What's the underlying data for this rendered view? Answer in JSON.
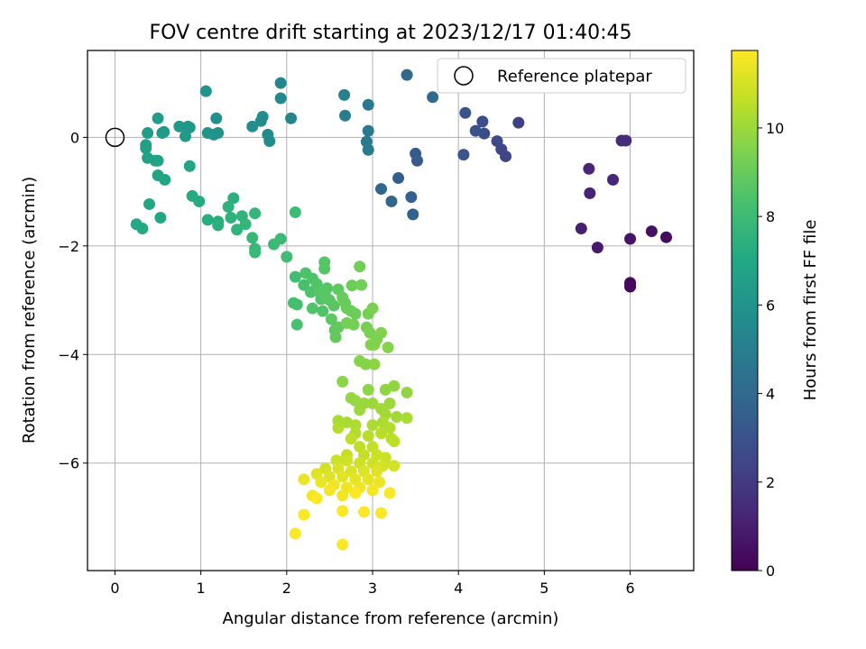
{
  "chart_data": {
    "type": "scatter",
    "title": "FOV centre drift starting at 2023/12/17 01:40:45",
    "xlabel": "Angular distance from reference (arcmin)",
    "ylabel": "Rotation from reference (arcmin)",
    "xlim": [
      -0.32,
      6.74
    ],
    "ylim": [
      -7.98,
      1.6
    ],
    "xticks": [
      0,
      1,
      2,
      3,
      4,
      5,
      6
    ],
    "yticks": [
      0,
      -2,
      -4,
      -6
    ],
    "grid": true,
    "legend": {
      "label": "Reference platepar",
      "placement": "top-right"
    },
    "reference": {
      "x": 0,
      "y": 0
    },
    "colorbar": {
      "label": "Hours from first FF file",
      "min": 0,
      "max": 11.75,
      "ticks": [
        0,
        2,
        4,
        6,
        8,
        10
      ],
      "colormap": "viridis"
    },
    "series": [
      {
        "points": [
          [
            6.0,
            -2.7,
            0.2
          ],
          [
            6.0,
            -2.75,
            0.2
          ],
          [
            6.0,
            -2.68,
            0.3
          ],
          [
            6.42,
            -1.84,
            0.4
          ],
          [
            6.25,
            -1.73,
            0.5
          ],
          [
            6.0,
            -1.87,
            0.6
          ],
          [
            5.62,
            -2.03,
            0.8
          ],
          [
            5.43,
            -1.68,
            1.0
          ],
          [
            5.53,
            -1.03,
            1.1
          ],
          [
            5.52,
            -0.58,
            1.2
          ],
          [
            5.8,
            -0.78,
            1.3
          ],
          [
            5.9,
            -0.06,
            1.4
          ],
          [
            5.95,
            -0.06,
            1.5
          ],
          [
            4.7,
            0.27,
            2.2
          ],
          [
            4.55,
            -0.35,
            2.4
          ],
          [
            4.5,
            -0.22,
            2.5
          ],
          [
            4.45,
            -0.07,
            2.6
          ],
          [
            4.3,
            0.07,
            2.7
          ],
          [
            4.28,
            0.29,
            2.8
          ],
          [
            4.2,
            0.12,
            2.9
          ],
          [
            4.08,
            0.45,
            3.0
          ],
          [
            4.06,
            -0.32,
            3.1
          ],
          [
            3.5,
            -0.3,
            3.3
          ],
          [
            3.52,
            -0.43,
            3.4
          ],
          [
            3.3,
            -0.75,
            3.5
          ],
          [
            3.45,
            -1.1,
            3.6
          ],
          [
            3.47,
            -1.42,
            3.7
          ],
          [
            3.22,
            -1.18,
            3.8
          ],
          [
            3.1,
            -0.95,
            3.9
          ],
          [
            3.4,
            1.15,
            4.0
          ],
          [
            3.7,
            0.74,
            4.1
          ],
          [
            2.95,
            0.6,
            4.7
          ],
          [
            2.95,
            0.12,
            4.8
          ],
          [
            2.93,
            -0.08,
            4.8
          ],
          [
            2.95,
            -0.23,
            4.9
          ],
          [
            2.68,
            0.4,
            5.0
          ],
          [
            2.67,
            0.78,
            5.1
          ],
          [
            2.05,
            0.35,
            5.3
          ],
          [
            1.93,
            1.0,
            5.4
          ],
          [
            1.93,
            0.72,
            5.5
          ],
          [
            1.78,
            0.05,
            5.6
          ],
          [
            1.8,
            -0.07,
            5.6
          ],
          [
            1.7,
            0.3,
            5.7
          ],
          [
            1.72,
            0.38,
            5.7
          ],
          [
            1.6,
            0.2,
            5.8
          ],
          [
            1.18,
            0.35,
            5.9
          ],
          [
            1.15,
            0.05,
            6.0
          ],
          [
            1.2,
            0.08,
            6.0
          ],
          [
            1.08,
            0.08,
            6.1
          ],
          [
            1.06,
            0.85,
            6.1
          ],
          [
            0.87,
            0.18,
            6.2
          ],
          [
            0.85,
            0.2,
            6.2
          ],
          [
            0.82,
            0.02,
            6.3
          ],
          [
            0.75,
            0.2,
            6.3
          ],
          [
            0.57,
            0.1,
            6.4
          ],
          [
            0.55,
            0.08,
            6.4
          ],
          [
            0.5,
            0.35,
            6.5
          ],
          [
            0.38,
            0.08,
            6.5
          ],
          [
            0.36,
            -0.14,
            6.6
          ],
          [
            0.36,
            -0.2,
            6.6
          ],
          [
            0.38,
            -0.38,
            6.7
          ],
          [
            0.47,
            -0.43,
            6.7
          ],
          [
            0.5,
            -0.43,
            6.8
          ],
          [
            0.5,
            -0.7,
            6.8
          ],
          [
            0.58,
            -0.78,
            6.9
          ],
          [
            0.87,
            -0.53,
            6.9
          ],
          [
            0.4,
            -1.23,
            7.0
          ],
          [
            0.53,
            -1.48,
            7.0
          ],
          [
            0.25,
            -1.6,
            7.1
          ],
          [
            0.32,
            -1.68,
            7.1
          ],
          [
            0.9,
            -1.08,
            7.2
          ],
          [
            0.98,
            -1.18,
            7.2
          ],
          [
            1.08,
            -1.52,
            7.3
          ],
          [
            1.2,
            -1.55,
            7.3
          ],
          [
            1.2,
            -1.62,
            7.4
          ],
          [
            1.38,
            -1.12,
            7.4
          ],
          [
            1.32,
            -1.28,
            7.5
          ],
          [
            1.35,
            -1.48,
            7.5
          ],
          [
            1.48,
            -1.45,
            7.6
          ],
          [
            1.42,
            -1.7,
            7.6
          ],
          [
            1.52,
            -1.6,
            7.7
          ],
          [
            1.63,
            -1.4,
            7.7
          ],
          [
            1.6,
            -1.85,
            7.8
          ],
          [
            1.63,
            -2.05,
            7.8
          ],
          [
            1.63,
            -2.12,
            7.9
          ],
          [
            1.85,
            -1.97,
            7.9
          ],
          [
            1.93,
            -1.87,
            8.0
          ],
          [
            2.1,
            -1.38,
            8.0
          ],
          [
            2.0,
            -2.2,
            8.1
          ],
          [
            2.1,
            -2.57,
            8.1
          ],
          [
            2.08,
            -3.05,
            8.2
          ],
          [
            2.12,
            -3.08,
            8.2
          ],
          [
            2.12,
            -3.45,
            8.3
          ],
          [
            2.2,
            -2.72,
            8.3
          ],
          [
            2.22,
            -2.5,
            8.4
          ],
          [
            2.3,
            -2.6,
            8.4
          ],
          [
            2.28,
            -2.85,
            8.4
          ],
          [
            2.3,
            -3.15,
            8.5
          ],
          [
            2.35,
            -2.7,
            8.5
          ],
          [
            2.4,
            -2.98,
            8.5
          ],
          [
            2.42,
            -3.2,
            8.5
          ],
          [
            2.44,
            -2.3,
            8.6
          ],
          [
            2.44,
            -2.42,
            8.6
          ],
          [
            2.38,
            -2.85,
            8.6
          ],
          [
            2.47,
            -2.78,
            8.6
          ],
          [
            2.45,
            -2.92,
            8.7
          ],
          [
            2.5,
            -3.0,
            8.7
          ],
          [
            2.55,
            -3.1,
            8.7
          ],
          [
            2.6,
            -2.8,
            8.8
          ],
          [
            2.52,
            -3.35,
            8.8
          ],
          [
            2.56,
            -3.55,
            8.8
          ],
          [
            2.6,
            -3.5,
            8.9
          ],
          [
            2.57,
            -3.68,
            8.9
          ],
          [
            2.65,
            -2.95,
            9.0
          ],
          [
            2.68,
            -3.05,
            9.0
          ],
          [
            2.7,
            -3.15,
            9.0
          ],
          [
            2.76,
            -2.73,
            9.1
          ],
          [
            2.75,
            -3.2,
            9.1
          ],
          [
            2.8,
            -3.25,
            9.1
          ],
          [
            2.78,
            -3.45,
            9.2
          ],
          [
            2.85,
            -2.38,
            9.2
          ],
          [
            2.87,
            -2.72,
            9.2
          ],
          [
            2.7,
            -3.42,
            9.3
          ],
          [
            2.95,
            -3.25,
            9.3
          ],
          [
            2.93,
            -3.5,
            9.3
          ],
          [
            3.0,
            -3.15,
            9.4
          ],
          [
            2.97,
            -3.6,
            9.4
          ],
          [
            3.05,
            -3.72,
            9.4
          ],
          [
            2.98,
            -3.82,
            9.5
          ],
          [
            3.02,
            -3.82,
            9.5
          ],
          [
            3.1,
            -3.6,
            9.5
          ],
          [
            3.18,
            -3.87,
            9.6
          ],
          [
            2.85,
            -4.12,
            9.6
          ],
          [
            2.92,
            -4.18,
            9.6
          ],
          [
            3.02,
            -4.18,
            9.7
          ],
          [
            2.65,
            -4.5,
            9.7
          ],
          [
            2.95,
            -4.65,
            9.7
          ],
          [
            3.15,
            -4.65,
            9.8
          ],
          [
            3.25,
            -4.58,
            9.8
          ],
          [
            3.4,
            -4.7,
            9.8
          ],
          [
            2.75,
            -4.8,
            9.9
          ],
          [
            2.8,
            -4.85,
            9.9
          ],
          [
            2.9,
            -4.9,
            9.9
          ],
          [
            3.0,
            -4.9,
            10.0
          ],
          [
            3.2,
            -4.9,
            10.0
          ],
          [
            2.85,
            -5.02,
            10.0
          ],
          [
            3.1,
            -5.0,
            10.1
          ],
          [
            3.15,
            -5.1,
            10.1
          ],
          [
            3.28,
            -5.15,
            10.1
          ],
          [
            3.4,
            -5.17,
            10.2
          ],
          [
            2.6,
            -5.22,
            10.2
          ],
          [
            2.7,
            -5.25,
            10.2
          ],
          [
            2.8,
            -5.3,
            10.3
          ],
          [
            3.0,
            -5.3,
            10.3
          ],
          [
            3.12,
            -5.25,
            10.3
          ],
          [
            3.2,
            -5.35,
            10.4
          ],
          [
            2.6,
            -5.35,
            10.4
          ],
          [
            2.8,
            -5.45,
            10.4
          ],
          [
            2.95,
            -5.5,
            10.5
          ],
          [
            3.1,
            -5.45,
            10.5
          ],
          [
            3.22,
            -5.55,
            10.5
          ],
          [
            3.25,
            -5.6,
            10.6
          ],
          [
            2.75,
            -5.55,
            10.6
          ],
          [
            2.85,
            -5.7,
            10.6
          ],
          [
            3.0,
            -5.7,
            10.7
          ],
          [
            2.7,
            -5.85,
            10.7
          ],
          [
            2.9,
            -5.85,
            10.7
          ],
          [
            3.05,
            -5.85,
            10.8
          ],
          [
            3.15,
            -5.9,
            10.8
          ],
          [
            2.58,
            -5.95,
            10.8
          ],
          [
            2.7,
            -5.95,
            10.9
          ],
          [
            2.85,
            -6.0,
            10.9
          ],
          [
            3.0,
            -6.0,
            10.9
          ],
          [
            3.12,
            -6.05,
            11.0
          ],
          [
            3.25,
            -6.05,
            11.0
          ],
          [
            2.45,
            -6.1,
            11.0
          ],
          [
            2.6,
            -6.1,
            11.1
          ],
          [
            2.75,
            -6.15,
            11.1
          ],
          [
            2.9,
            -6.15,
            11.1
          ],
          [
            3.05,
            -6.15,
            11.2
          ],
          [
            2.35,
            -6.2,
            11.2
          ],
          [
            2.5,
            -6.25,
            11.2
          ],
          [
            2.65,
            -6.25,
            11.3
          ],
          [
            2.8,
            -6.3,
            11.3
          ],
          [
            2.95,
            -6.3,
            11.3
          ],
          [
            3.08,
            -6.35,
            11.4
          ],
          [
            2.2,
            -6.3,
            11.4
          ],
          [
            2.4,
            -6.35,
            11.4
          ],
          [
            2.55,
            -6.4,
            11.5
          ],
          [
            2.7,
            -6.45,
            11.5
          ],
          [
            2.85,
            -6.45,
            11.5
          ],
          [
            3.0,
            -6.5,
            11.6
          ],
          [
            2.3,
            -6.6,
            11.6
          ],
          [
            2.5,
            -6.5,
            11.6
          ],
          [
            2.65,
            -6.6,
            11.6
          ],
          [
            2.8,
            -6.55,
            11.7
          ],
          [
            3.2,
            -6.55,
            11.7
          ],
          [
            2.35,
            -6.65,
            11.7
          ],
          [
            2.9,
            -6.9,
            11.7
          ],
          [
            3.1,
            -6.92,
            11.7
          ],
          [
            2.65,
            -6.88,
            11.7
          ],
          [
            2.2,
            -6.95,
            11.7
          ],
          [
            2.1,
            -7.3,
            11.7
          ],
          [
            2.65,
            -7.5,
            11.7
          ]
        ]
      }
    ]
  }
}
